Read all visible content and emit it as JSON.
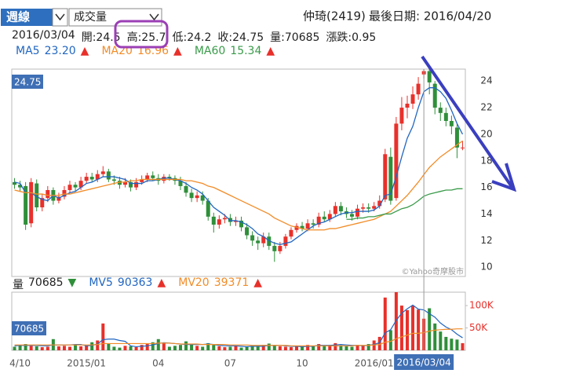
{
  "header": {
    "period": "週線",
    "indicator": "成交量",
    "stock": "仲琦(2419)",
    "last_date": "最後日期: 2016/04/20"
  },
  "info": [
    "2016/03/04",
    "開:24.5",
    "高:25.7",
    "低:24.2",
    "收:24.75",
    "量:70685",
    "漲跌:0.95"
  ],
  "chart_data": [
    {
      "type": "candlestick",
      "open": [
        16.4,
        16.2,
        16.1,
        13.3,
        16.3,
        14.5,
        15.2,
        15.8,
        15.0,
        15.3,
        15.8,
        16.2,
        16.0,
        16.5,
        16.8,
        16.6,
        17.0,
        17.2,
        16.6,
        16.5,
        16.2,
        16.4,
        16.0,
        16.4,
        16.6,
        16.9,
        16.7,
        16.5,
        16.8,
        16.7,
        16.5,
        16.1,
        15.6,
        15.2,
        15.4,
        15.0,
        13.8,
        13.2,
        13.6,
        13.7,
        13.4,
        13.5,
        13.0,
        12.4,
        12.0,
        11.8,
        12.3,
        11.6,
        11.2,
        11.6,
        12.3,
        12.8,
        13.1,
        12.9,
        13.3,
        13.2,
        13.8,
        13.6,
        14.0,
        14.6,
        14.2,
        14.0,
        13.8,
        14.4,
        14.5,
        14.4,
        14.6,
        15.1,
        18.3,
        15.2,
        20.8,
        22.0,
        22.3,
        23.0,
        24.5,
        24.75,
        23.8,
        22.0,
        21.6,
        21.0,
        20.5,
        19.0
      ],
      "high": [
        16.7,
        16.5,
        16.4,
        16.7,
        16.6,
        15.5,
        16.1,
        16.0,
        15.6,
        16.1,
        16.5,
        16.4,
        16.8,
        17.1,
        17.1,
        17.3,
        17.6,
        17.4,
        16.9,
        16.8,
        16.7,
        16.6,
        16.7,
        16.9,
        17.1,
        17.2,
        17.0,
        17.0,
        17.0,
        16.9,
        16.8,
        16.4,
        15.9,
        15.7,
        15.7,
        15.2,
        14.1,
        13.9,
        14.0,
        14.0,
        13.8,
        13.8,
        13.3,
        12.7,
        12.3,
        12.6,
        12.6,
        11.9,
        11.9,
        12.5,
        13.0,
        13.3,
        13.4,
        13.6,
        13.6,
        14.1,
        14.2,
        14.3,
        14.9,
        14.9,
        14.5,
        14.3,
        14.7,
        14.8,
        14.8,
        14.9,
        15.4,
        18.9,
        19.0,
        21.3,
        22.8,
        22.9,
        23.6,
        24.3,
        25.7,
        25.0,
        24.0,
        22.4,
        22.0,
        21.4,
        20.8,
        19.5
      ],
      "low": [
        15.9,
        15.7,
        12.8,
        13.0,
        14.2,
        14.2,
        14.9,
        14.7,
        14.8,
        15.1,
        15.6,
        15.7,
        15.8,
        16.3,
        16.4,
        16.4,
        16.8,
        16.4,
        16.2,
        15.9,
        16.0,
        15.7,
        15.8,
        16.2,
        16.4,
        16.5,
        16.2,
        16.3,
        16.5,
        16.2,
        15.8,
        15.3,
        14.9,
        14.9,
        14.7,
        13.5,
        12.6,
        12.9,
        13.3,
        13.1,
        13.1,
        12.7,
        12.1,
        11.6,
        11.3,
        11.5,
        11.3,
        10.4,
        11.0,
        11.4,
        12.1,
        12.6,
        12.7,
        12.7,
        12.9,
        13.0,
        13.4,
        13.4,
        13.8,
        13.9,
        13.7,
        13.5,
        13.6,
        14.1,
        14.1,
        14.2,
        14.4,
        14.9,
        14.7,
        15.0,
        20.3,
        21.2,
        21.9,
        22.6,
        24.2,
        23.0,
        21.5,
        21.0,
        20.6,
        20.0,
        18.2,
        18.8
      ],
      "close": [
        16.2,
        16.0,
        13.2,
        16.4,
        14.5,
        15.2,
        15.8,
        15.0,
        15.3,
        15.8,
        16.2,
        16.0,
        16.5,
        16.8,
        16.6,
        17.0,
        17.2,
        16.6,
        16.5,
        16.2,
        16.4,
        16.0,
        16.4,
        16.6,
        16.9,
        16.7,
        16.5,
        16.8,
        16.7,
        16.5,
        16.1,
        15.6,
        15.2,
        15.4,
        15.0,
        13.8,
        13.2,
        13.6,
        13.7,
        13.4,
        13.5,
        13.0,
        12.4,
        12.0,
        11.8,
        12.3,
        11.6,
        11.2,
        11.6,
        12.3,
        12.8,
        13.1,
        12.9,
        13.3,
        13.2,
        13.8,
        13.6,
        14.0,
        14.6,
        14.2,
        14.0,
        13.8,
        14.4,
        14.5,
        14.4,
        14.6,
        15.0,
        18.5,
        15.0,
        20.8,
        22.0,
        22.3,
        23.0,
        23.8,
        24.75,
        23.9,
        22.0,
        21.6,
        21.0,
        20.6,
        19.0,
        19.0
      ],
      "up_color": "#e8302a",
      "down_color": "#2f8f3a",
      "ylim": [
        9.3,
        24.9
      ],
      "yticks": [
        10,
        12,
        14,
        16,
        18,
        20,
        22,
        24
      ],
      "series": [
        {
          "name": "MA5",
          "color": "#2166c1",
          "legend_value": "23.20",
          "legend_arrow": "▲",
          "arrow_color": "#e8302a",
          "values": [
            16.4,
            16.3,
            15.6,
            15.6,
            15.3,
            15.1,
            15.0,
            15.4,
            15.2,
            15.4,
            15.6,
            15.7,
            16.0,
            16.3,
            16.4,
            16.6,
            16.8,
            16.8,
            16.8,
            16.7,
            16.6,
            16.3,
            16.3,
            16.3,
            16.5,
            16.5,
            16.6,
            16.7,
            16.7,
            16.6,
            16.5,
            16.3,
            16.0,
            15.8,
            15.5,
            15.0,
            14.5,
            14.2,
            13.9,
            13.5,
            13.5,
            13.4,
            13.2,
            12.9,
            12.5,
            12.3,
            12.0,
            11.8,
            11.7,
            11.8,
            11.9,
            12.2,
            12.5,
            12.8,
            13.1,
            13.3,
            13.4,
            13.6,
            13.8,
            14.0,
            14.1,
            14.1,
            14.2,
            14.2,
            14.2,
            14.3,
            14.6,
            15.4,
            15.5,
            16.8,
            18.3,
            19.7,
            20.6,
            22.0,
            23.2,
            23.5,
            23.5,
            23.2,
            22.7,
            21.8,
            20.8,
            20.0
          ]
        },
        {
          "name": "MA20",
          "color": "#f28c28",
          "legend_value": "16.96",
          "legend_arrow": "▲",
          "arrow_color": "#e8302a",
          "values": [
            15.8,
            15.7,
            15.6,
            15.6,
            15.5,
            15.5,
            15.4,
            15.4,
            15.4,
            15.5,
            15.5,
            15.6,
            15.7,
            15.8,
            15.9,
            16.0,
            16.1,
            16.2,
            16.3,
            16.4,
            16.4,
            16.5,
            16.5,
            16.6,
            16.6,
            16.6,
            16.6,
            16.6,
            16.6,
            16.6,
            16.6,
            16.5,
            16.5,
            16.4,
            16.3,
            16.1,
            16.0,
            15.8,
            15.6,
            15.4,
            15.2,
            15.0,
            14.8,
            14.6,
            14.4,
            14.2,
            14.0,
            13.7,
            13.5,
            13.3,
            13.1,
            13.0,
            12.9,
            12.8,
            12.8,
            12.8,
            12.8,
            12.9,
            12.9,
            13.0,
            13.1,
            13.2,
            13.3,
            13.4,
            13.5,
            13.6,
            13.8,
            14.0,
            14.2,
            14.6,
            15.0,
            15.4,
            15.9,
            16.4,
            16.96,
            17.5,
            17.9,
            18.3,
            18.6,
            18.9,
            19.2,
            19.5
          ]
        },
        {
          "name": "MA60",
          "color": "#3a9b4a",
          "legend_value": "15.34",
          "legend_arrow": "▲",
          "arrow_color": "#e8302a",
          "values": [
            null,
            null,
            null,
            null,
            null,
            null,
            null,
            null,
            null,
            null,
            null,
            null,
            null,
            null,
            null,
            null,
            null,
            null,
            null,
            null,
            null,
            null,
            null,
            null,
            null,
            null,
            null,
            null,
            null,
            null,
            null,
            null,
            null,
            null,
            null,
            null,
            null,
            null,
            null,
            null,
            null,
            null,
            null,
            null,
            null,
            null,
            null,
            null,
            null,
            null,
            null,
            null,
            null,
            null,
            null,
            null,
            null,
            null,
            null,
            null,
            13.6,
            13.6,
            13.7,
            13.7,
            13.8,
            13.8,
            13.9,
            14.0,
            14.0,
            14.2,
            14.4,
            14.5,
            14.7,
            15.0,
            15.34,
            15.5,
            15.6,
            15.7,
            15.8,
            15.8,
            15.9,
            15.9
          ]
        }
      ],
      "watermark": "©Yahoo奇摩股市"
    },
    {
      "type": "bar",
      "name": "量",
      "legend_value": "70685",
      "legend_arrow": "▼",
      "arrow_color": "#2f8f3a",
      "values": [
        8000,
        12000,
        14000,
        10000,
        9000,
        7000,
        8000,
        25000,
        9000,
        10000,
        8000,
        12000,
        9000,
        10000,
        18000,
        22000,
        60000,
        15000,
        8000,
        6000,
        10000,
        9000,
        7000,
        12000,
        14000,
        18000,
        25000,
        15000,
        8000,
        10000,
        12000,
        20000,
        14000,
        10000,
        8000,
        16000,
        12000,
        9000,
        7000,
        8000,
        10000,
        6000,
        9000,
        10000,
        8000,
        12000,
        15000,
        10000,
        9000,
        8000,
        7000,
        10000,
        8000,
        12000,
        9000,
        14000,
        10000,
        12000,
        16000,
        11000,
        9000,
        8000,
        12000,
        10000,
        14000,
        22000,
        30000,
        118000,
        45000,
        130000,
        100000,
        90000,
        100000,
        91000,
        70685,
        94000,
        60000,
        42000,
        30000,
        26000,
        24000,
        16000
      ],
      "categories": [
        null,
        "4/10",
        null,
        null,
        null,
        null,
        null,
        null,
        null,
        null,
        null,
        null,
        null,
        "2015/01",
        null,
        null,
        null,
        null,
        null,
        null,
        null,
        null,
        null,
        null,
        null,
        null,
        "04",
        null,
        null,
        null,
        null,
        null,
        null,
        null,
        null,
        null,
        null,
        null,
        null,
        "07",
        null,
        null,
        null,
        null,
        null,
        null,
        null,
        null,
        null,
        null,
        null,
        null,
        "10",
        null,
        null,
        null,
        null,
        null,
        null,
        null,
        null,
        null,
        null,
        null,
        null,
        "2016/01",
        null,
        null,
        null,
        null,
        null,
        null,
        null,
        null,
        "2016/03/04",
        null,
        null,
        null,
        null,
        null,
        null,
        null
      ],
      "cursor_index": 74,
      "ylim": [
        0,
        130000
      ],
      "yticks": [
        {
          "value": 50000,
          "label": "50K"
        },
        {
          "value": 100000,
          "label": "100K"
        }
      ],
      "tick_color": "#e8302a",
      "series": [
        {
          "name": "MV5",
          "color": "#2166c1",
          "legend_value": "90363",
          "legend_arrow": "▲",
          "arrow_color": "#e8302a",
          "values": [
            10000,
            11000,
            11000,
            11000,
            11000,
            10000,
            10000,
            12000,
            12000,
            12000,
            12000,
            13000,
            13000,
            10000,
            11000,
            14000,
            24000,
            25000,
            25000,
            22000,
            20000,
            10000,
            8000,
            9000,
            10000,
            12000,
            15000,
            17000,
            16000,
            15000,
            14000,
            13000,
            13000,
            13000,
            13000,
            14000,
            13000,
            11000,
            10000,
            10000,
            10000,
            9000,
            8000,
            9000,
            9000,
            9000,
            11000,
            11000,
            11000,
            10000,
            9000,
            9000,
            8000,
            9000,
            9000,
            11000,
            11000,
            11000,
            12000,
            13000,
            12000,
            11000,
            11000,
            10000,
            11000,
            13000,
            17000,
            39000,
            46000,
            67000,
            83000,
            93000,
            101000,
            92000,
            90363,
            82000,
            74000,
            61000,
            52000,
            46000,
            36000,
            28000
          ]
        },
        {
          "name": "MV20",
          "color": "#f28c28",
          "legend_value": "39371",
          "legend_arrow": "▲",
          "arrow_color": "#e8302a",
          "values": [
            12000,
            12000,
            12000,
            12000,
            12000,
            12000,
            12000,
            12000,
            12000,
            12000,
            12000,
            12000,
            12000,
            12000,
            12000,
            13000,
            15000,
            15000,
            15000,
            15000,
            15000,
            15000,
            15000,
            15000,
            15000,
            15000,
            16000,
            16000,
            16000,
            15000,
            14000,
            14000,
            14000,
            14000,
            13000,
            13000,
            13000,
            13000,
            13000,
            12000,
            12000,
            12000,
            12000,
            11000,
            11000,
            11000,
            11000,
            11000,
            11000,
            11000,
            10000,
            10000,
            10000,
            10000,
            10000,
            10000,
            10000,
            10000,
            10000,
            10000,
            10000,
            10000,
            11000,
            11000,
            11000,
            12000,
            13000,
            18000,
            20000,
            26000,
            30000,
            34000,
            38000,
            38000,
            39371,
            43000,
            45000,
            46000,
            47000,
            47000,
            48000,
            48000
          ]
        }
      ]
    }
  ]
}
